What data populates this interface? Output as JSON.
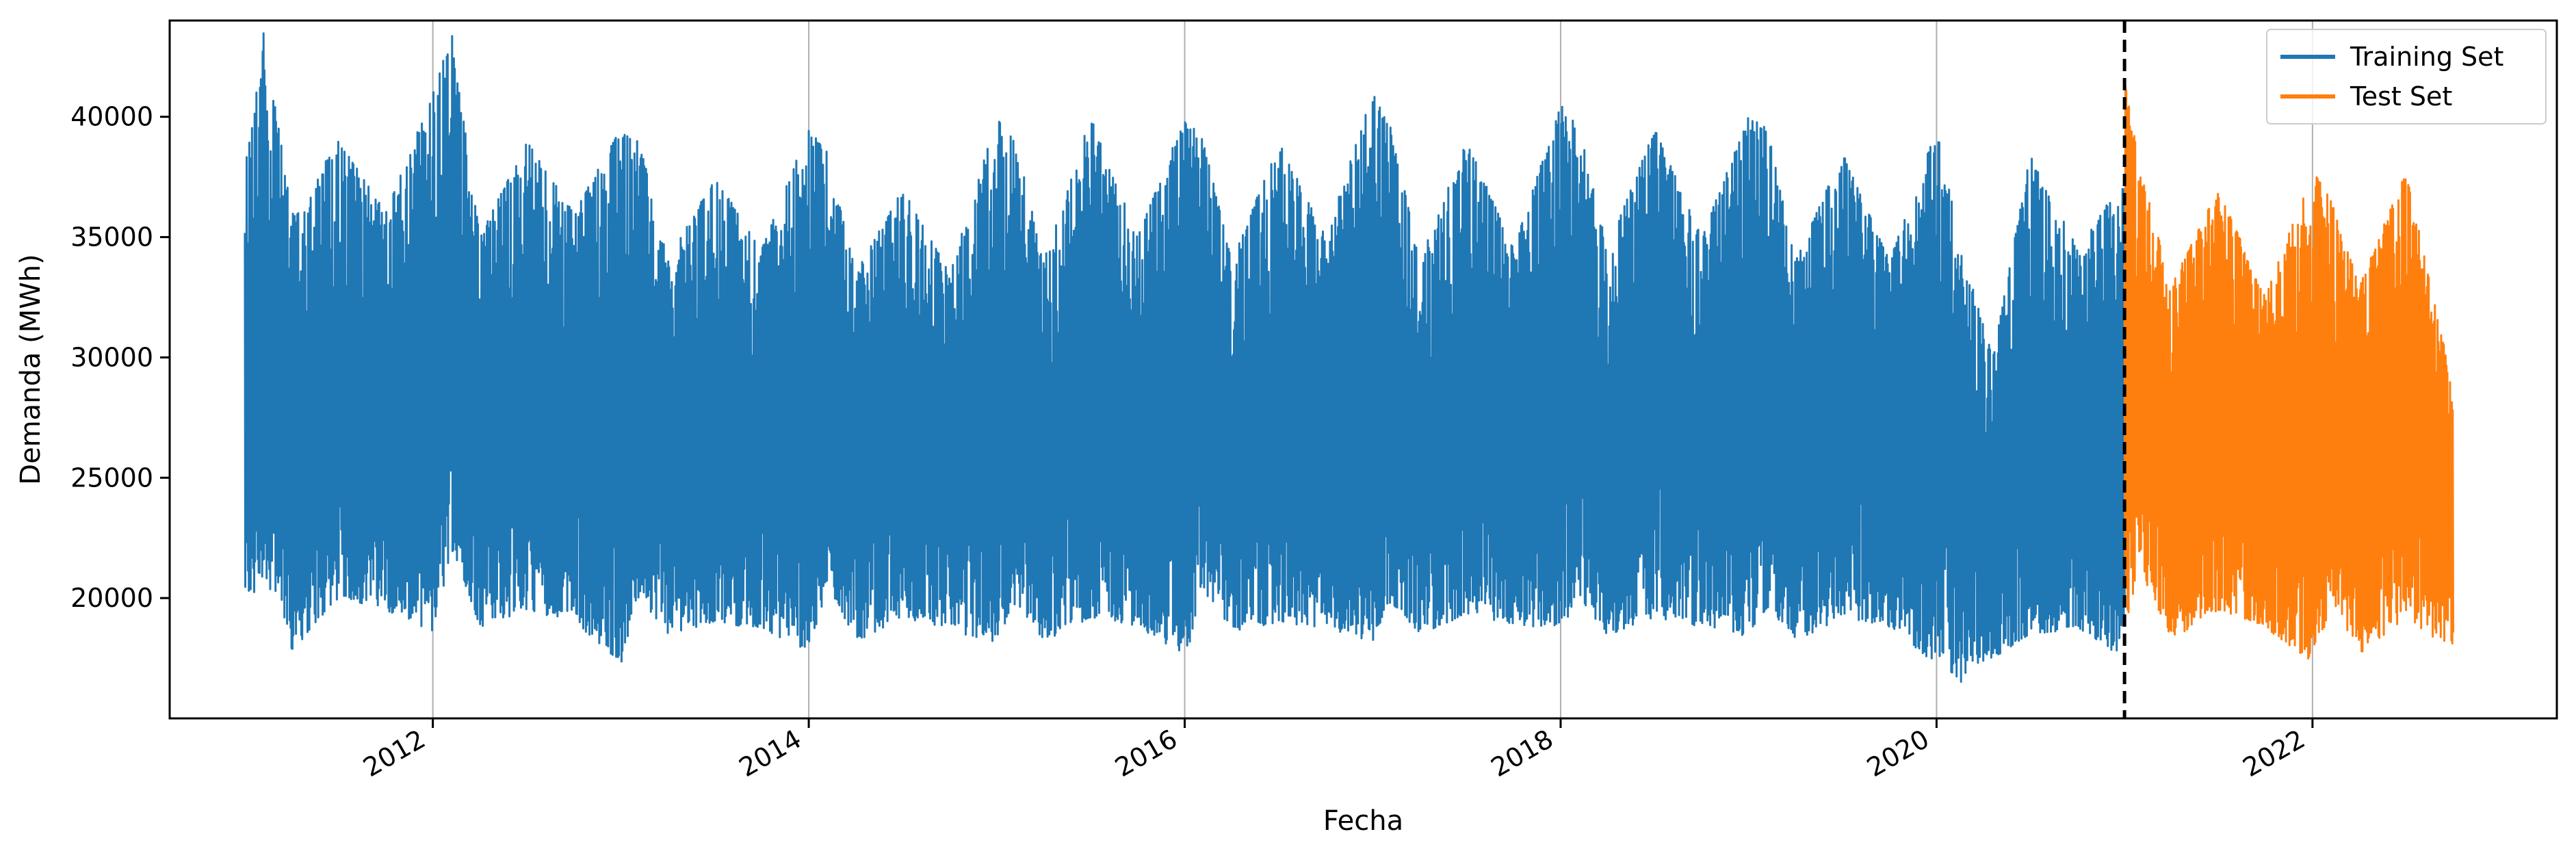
{
  "chart_data": {
    "type": "line",
    "title": "",
    "xlabel": "Fecha",
    "ylabel": "Demanda (MWh)",
    "xlim": [
      2010.6,
      2023.3
    ],
    "ylim": [
      15000,
      44000
    ],
    "x_ticks": [
      2012,
      2014,
      2016,
      2018,
      2020,
      2022
    ],
    "x_tick_labels": [
      "2012",
      "2014",
      "2016",
      "2018",
      "2020",
      "2022"
    ],
    "y_ticks": [
      20000,
      25000,
      30000,
      35000,
      40000
    ],
    "y_tick_labels": [
      "20000",
      "25000",
      "30000",
      "35000",
      "40000"
    ],
    "grid": "vertical",
    "legend": "top-right",
    "split_date": 2021.0,
    "split_line_style": "dashed-black",
    "series": [
      {
        "name": "Training Set",
        "color": "#1f77b4",
        "x_range": [
          2011.0,
          2021.0
        ],
        "envelope": {
          "x": [
            2011.0,
            2011.1,
            2011.25,
            2011.5,
            2011.75,
            2012.0,
            2012.1,
            2012.25,
            2012.5,
            2012.75,
            2013.0,
            2013.1,
            2013.25,
            2013.5,
            2013.75,
            2014.0,
            2014.1,
            2014.25,
            2014.5,
            2014.75,
            2015.0,
            2015.1,
            2015.25,
            2015.5,
            2015.75,
            2016.0,
            2016.1,
            2016.25,
            2016.5,
            2016.75,
            2017.0,
            2017.1,
            2017.25,
            2017.5,
            2017.75,
            2018.0,
            2018.1,
            2018.25,
            2018.5,
            2018.75,
            2019.0,
            2019.1,
            2019.25,
            2019.5,
            2019.75,
            2020.0,
            2020.15,
            2020.3,
            2020.5,
            2020.75,
            2021.0
          ],
          "y_max": [
            38000,
            43500,
            36000,
            39000,
            36000,
            41000,
            43500,
            35000,
            39000,
            36000,
            39500,
            39000,
            34000,
            37500,
            34500,
            39500,
            38500,
            33500,
            37000,
            33500,
            40000,
            39000,
            34000,
            40000,
            35000,
            40000,
            39000,
            34000,
            39000,
            35000,
            41000,
            39500,
            34000,
            39000,
            34500,
            40500,
            39500,
            34500,
            39500,
            35000,
            40000,
            39500,
            34000,
            38500,
            34000,
            39500,
            34000,
            30000,
            38500,
            34500,
            37500
          ],
          "y_min": [
            19200,
            21000,
            17800,
            20000,
            19500,
            18500,
            22000,
            18800,
            19500,
            19000,
            17300,
            20000,
            18500,
            19000,
            18700,
            17800,
            20500,
            18200,
            19200,
            18700,
            18000,
            19800,
            18200,
            19200,
            18800,
            17500,
            20200,
            18600,
            19000,
            18700,
            18200,
            19800,
            18500,
            19300,
            18900,
            18700,
            20000,
            18400,
            19200,
            18800,
            18400,
            19600,
            18200,
            19200,
            18800,
            17200,
            16400,
            17500,
            18500,
            18700,
            17500
          ]
        }
      },
      {
        "name": "Test Set",
        "color": "#ff7f0e",
        "x_range": [
          2021.0,
          2022.75
        ],
        "envelope": {
          "x": [
            2021.0,
            2021.08,
            2021.25,
            2021.5,
            2021.75,
            2022.0,
            2022.1,
            2022.25,
            2022.5,
            2022.6,
            2022.75
          ],
          "y_max": [
            41500,
            38000,
            33000,
            37000,
            32500,
            37800,
            36500,
            33000,
            37800,
            34000,
            29000
          ],
          "y_min": [
            18800,
            21000,
            18300,
            19500,
            18700,
            17100,
            19800,
            17700,
            19200,
            18500,
            18000
          ]
        }
      }
    ]
  }
}
